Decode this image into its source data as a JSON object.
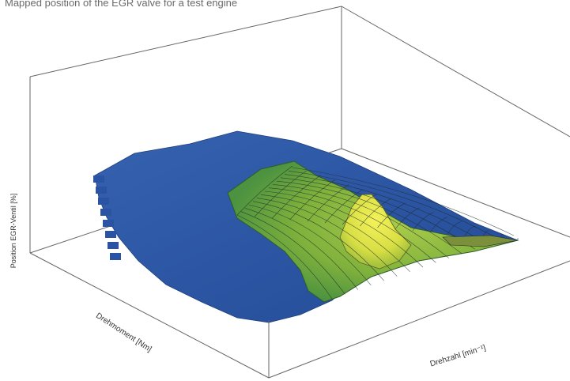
{
  "figure_title": "Mapped position of the EGR valve for a test engine",
  "chart_data": {
    "type": "surface",
    "title": "Mapped position of the EGR valve for a test engine",
    "zlabel": "Position EGR-Ventil [%]",
    "ylabel": "Drehmoment [Nm]",
    "xlabel": "Drehzahl [min⁻¹]",
    "grid": true,
    "colors": {
      "low": "#2a53a3",
      "mid": "#6aa53a",
      "high": "#e8ea4a",
      "box_edge": "#555555",
      "mesh_line": "#1e2a2a"
    },
    "peak_region": "high speed, low-to-mid torque",
    "surface_description_levels": [
      "low",
      "mid",
      "high"
    ]
  }
}
